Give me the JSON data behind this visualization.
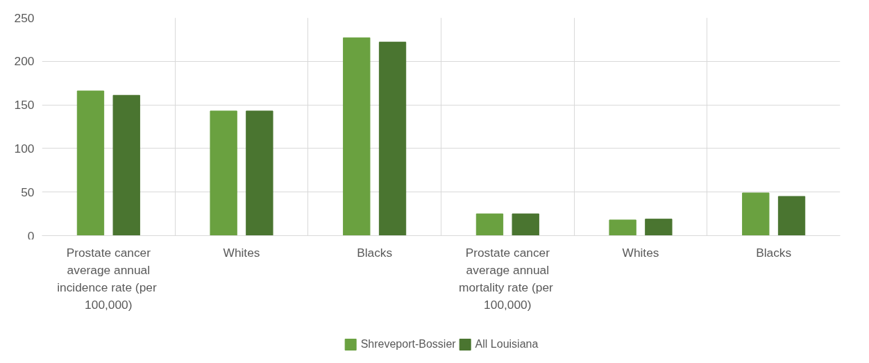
{
  "chart_data": {
    "type": "bar",
    "categories": [
      "Prostate cancer average annual incidence rate  (per 100,000)",
      "Whites",
      "Blacks",
      "Prostate cancer average annual mortality rate  (per 100,000)",
      "Whites",
      "Blacks"
    ],
    "series": [
      {
        "name": "Shreveport-Bossier",
        "color": "#6aa140",
        "values": [
          166,
          143,
          227,
          25,
          18,
          49
        ]
      },
      {
        "name": "All Louisiana",
        "color": "#4a7530",
        "values": [
          161,
          143,
          222,
          25,
          19,
          45
        ]
      }
    ],
    "ylim": [
      0,
      250
    ],
    "yticks": [
      0,
      50,
      100,
      150,
      200,
      250
    ],
    "grid": true,
    "legend": "bottom"
  }
}
